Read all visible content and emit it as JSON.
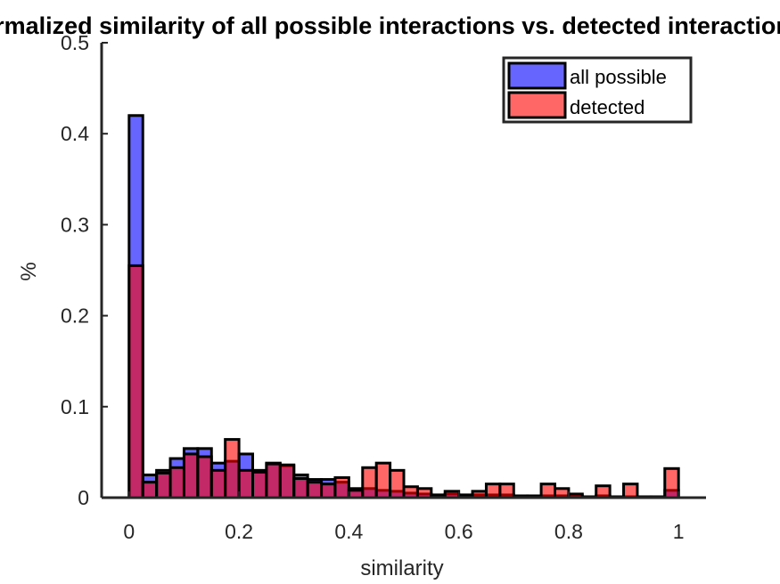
{
  "chart_data": {
    "type": "bar",
    "title": "Normalized similarity of all possible interactions vs. detected interactions",
    "xlabel": "similarity",
    "ylabel": "%",
    "xlim": [
      -0.05,
      1.05
    ],
    "ylim": [
      0,
      0.5
    ],
    "xticks": [
      0,
      0.2,
      0.4,
      0.6,
      0.8,
      1
    ],
    "xtick_labels": [
      "0",
      "0.2",
      "0.4",
      "0.6",
      "0.8",
      "1"
    ],
    "yticks": [
      0,
      0.1,
      0.2,
      0.3,
      0.4,
      0.5
    ],
    "ytick_labels": [
      "0",
      "0.1",
      "0.2",
      "0.3",
      "0.4",
      "0.5"
    ],
    "grid": false,
    "legend_position": "top-right",
    "bin_width": 0.025,
    "x": [
      0.0125,
      0.0375,
      0.0625,
      0.0875,
      0.1125,
      0.1375,
      0.1625,
      0.1875,
      0.2125,
      0.2375,
      0.2625,
      0.2875,
      0.3125,
      0.3375,
      0.3625,
      0.3875,
      0.4125,
      0.4375,
      0.4625,
      0.4875,
      0.5125,
      0.5375,
      0.5625,
      0.5875,
      0.6125,
      0.6375,
      0.6625,
      0.6875,
      0.7125,
      0.7375,
      0.7625,
      0.7875,
      0.8125,
      0.8375,
      0.8625,
      0.8875,
      0.9125,
      0.9375,
      0.9625,
      0.9875
    ],
    "series": [
      {
        "name": "all possible",
        "color": "#0000ff",
        "values": [
          0.42,
          0.025,
          0.03,
          0.043,
          0.054,
          0.054,
          0.038,
          0.04,
          0.048,
          0.03,
          0.038,
          0.035,
          0.025,
          0.02,
          0.02,
          0.017,
          0.01,
          0.01,
          0.008,
          0.007,
          0.005,
          0.004,
          0.003,
          0.004,
          0.003,
          0.003,
          0.003,
          0.003,
          0.002,
          0.002,
          0.002,
          0.002,
          0.002,
          0.001,
          0.002,
          0.001,
          0.001,
          0.001,
          0.001,
          0.008
        ]
      },
      {
        "name": "detected",
        "color": "#ff0000",
        "values": [
          0.255,
          0.017,
          0.027,
          0.033,
          0.048,
          0.045,
          0.03,
          0.064,
          0.03,
          0.028,
          0.037,
          0.036,
          0.021,
          0.017,
          0.015,
          0.022,
          0.008,
          0.033,
          0.038,
          0.03,
          0.012,
          0.01,
          0.003,
          0.007,
          0.003,
          0.007,
          0.015,
          0.015,
          0.0,
          0.0,
          0.015,
          0.01,
          0.004,
          0.0,
          0.013,
          0.0,
          0.015,
          0.0,
          0.0,
          0.032
        ]
      }
    ]
  }
}
